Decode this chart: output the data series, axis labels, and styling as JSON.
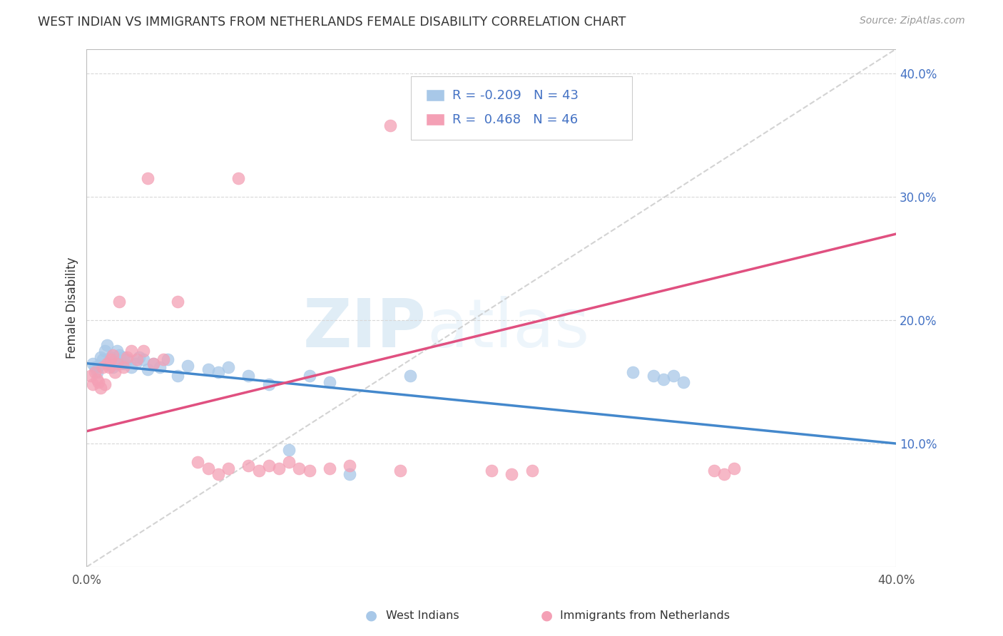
{
  "title": "WEST INDIAN VS IMMIGRANTS FROM NETHERLANDS FEMALE DISABILITY CORRELATION CHART",
  "source": "Source: ZipAtlas.com",
  "ylabel": "Female Disability",
  "x_min": 0.0,
  "x_max": 0.4,
  "y_min": 0.0,
  "y_max": 0.42,
  "x_ticks": [
    0.0,
    0.05,
    0.1,
    0.15,
    0.2,
    0.25,
    0.3,
    0.35,
    0.4
  ],
  "y_ticks_right": [
    0.1,
    0.2,
    0.3,
    0.4
  ],
  "y_tick_labels_right": [
    "10.0%",
    "20.0%",
    "30.0%",
    "40.0%"
  ],
  "watermark_zip": "ZIP",
  "watermark_atlas": "atlas",
  "blue_color": "#a8c8e8",
  "pink_color": "#f4a0b5",
  "blue_line_color": "#4488cc",
  "pink_line_color": "#e05080",
  "dashed_line_color": "#c8c8c8",
  "grid_color": "#d8d8d8",
  "background_color": "#ffffff",
  "blue_line_x0": 0.0,
  "blue_line_y0": 0.165,
  "blue_line_x1": 0.4,
  "blue_line_y1": 0.1,
  "pink_line_x0": 0.0,
  "pink_line_y0": 0.11,
  "pink_line_x1": 0.4,
  "pink_line_y1": 0.27,
  "west_indians_x": [
    0.003,
    0.004,
    0.005,
    0.006,
    0.007,
    0.008,
    0.009,
    0.01,
    0.011,
    0.012,
    0.013,
    0.014,
    0.015,
    0.016,
    0.017,
    0.018,
    0.019,
    0.02,
    0.022,
    0.024,
    0.026,
    0.028,
    0.03,
    0.033,
    0.036,
    0.04,
    0.045,
    0.05,
    0.06,
    0.065,
    0.07,
    0.08,
    0.09,
    0.1,
    0.11,
    0.12,
    0.13,
    0.16,
    0.27,
    0.28,
    0.285,
    0.29,
    0.295
  ],
  "west_indians_y": [
    0.165,
    0.162,
    0.158,
    0.163,
    0.17,
    0.168,
    0.175,
    0.18,
    0.165,
    0.17,
    0.162,
    0.168,
    0.175,
    0.172,
    0.165,
    0.17,
    0.165,
    0.168,
    0.162,
    0.165,
    0.17,
    0.168,
    0.16,
    0.165,
    0.162,
    0.168,
    0.155,
    0.163,
    0.16,
    0.158,
    0.162,
    0.155,
    0.148,
    0.095,
    0.155,
    0.15,
    0.075,
    0.155,
    0.158,
    0.155,
    0.152,
    0.155,
    0.15
  ],
  "netherlands_x": [
    0.002,
    0.003,
    0.004,
    0.005,
    0.006,
    0.007,
    0.008,
    0.009,
    0.01,
    0.011,
    0.012,
    0.013,
    0.014,
    0.015,
    0.016,
    0.018,
    0.02,
    0.022,
    0.025,
    0.028,
    0.03,
    0.033,
    0.038,
    0.045,
    0.055,
    0.06,
    0.065,
    0.07,
    0.075,
    0.08,
    0.085,
    0.09,
    0.095,
    0.1,
    0.105,
    0.11,
    0.12,
    0.13,
    0.15,
    0.155,
    0.2,
    0.21,
    0.22,
    0.31,
    0.315,
    0.32
  ],
  "netherlands_y": [
    0.155,
    0.148,
    0.158,
    0.152,
    0.15,
    0.145,
    0.162,
    0.148,
    0.165,
    0.162,
    0.168,
    0.172,
    0.158,
    0.165,
    0.215,
    0.162,
    0.17,
    0.175,
    0.168,
    0.175,
    0.315,
    0.165,
    0.168,
    0.215,
    0.085,
    0.08,
    0.075,
    0.08,
    0.315,
    0.082,
    0.078,
    0.082,
    0.08,
    0.085,
    0.08,
    0.078,
    0.08,
    0.082,
    0.358,
    0.078,
    0.078,
    0.075,
    0.078,
    0.078,
    0.075,
    0.08
  ],
  "legend_text_color": "#4472C4",
  "legend_r1": "R = -0.209",
  "legend_n1": "N = 43",
  "legend_r2": "R =  0.468",
  "legend_n2": "N = 46"
}
